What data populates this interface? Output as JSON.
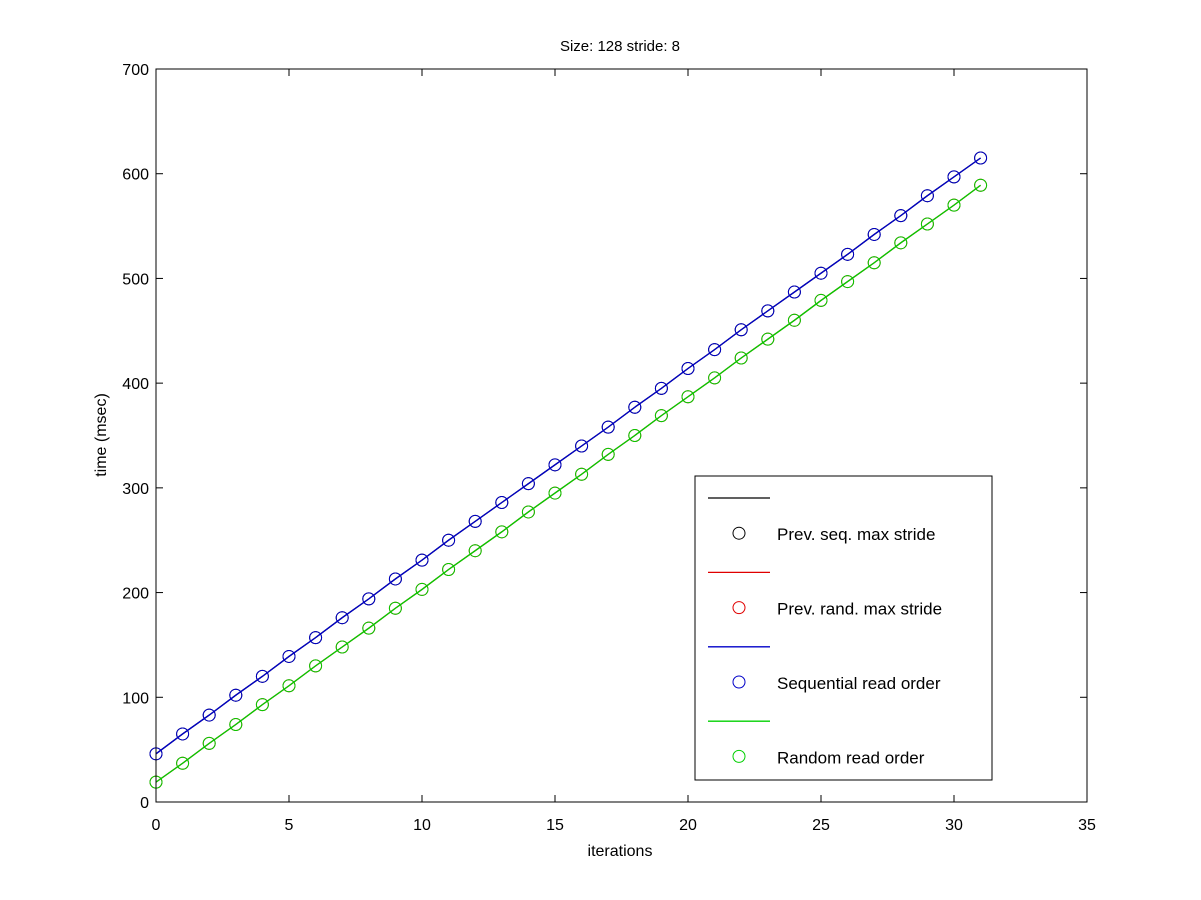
{
  "chart_data": {
    "type": "line",
    "title": "Size: 128 stride: 8",
    "xlabel": "iterations",
    "ylabel": "time (msec)",
    "xlim": [
      0,
      35
    ],
    "ylim": [
      0,
      700
    ],
    "xticks": [
      0,
      5,
      10,
      15,
      20,
      25,
      30,
      35
    ],
    "yticks": [
      0,
      100,
      200,
      300,
      400,
      500,
      600,
      700
    ],
    "grid": false,
    "legend_position": "bottom-right",
    "x": [
      0,
      1,
      2,
      3,
      4,
      5,
      6,
      7,
      8,
      9,
      10,
      11,
      12,
      13,
      14,
      15,
      16,
      17,
      18,
      19,
      20,
      21,
      22,
      23,
      24,
      25,
      26,
      27,
      28,
      29,
      30,
      31
    ],
    "series": [
      {
        "name": "Prev. seq. max stride",
        "line_color": "#000000",
        "marker_color": "#000000",
        "values": [
          46,
          65,
          83,
          102,
          120,
          139,
          157,
          176,
          194,
          213,
          231,
          250,
          268,
          286,
          304,
          322,
          340,
          358,
          377,
          395,
          414,
          432,
          451,
          469,
          487,
          505,
          523,
          542,
          560,
          579,
          597,
          615
        ]
      },
      {
        "name": "Prev. rand. max stride",
        "line_color": "#e00000",
        "marker_color": "#e00000",
        "values": [
          19,
          37,
          56,
          74,
          93,
          111,
          130,
          148,
          166,
          185,
          203,
          222,
          240,
          258,
          277,
          295,
          313,
          332,
          350,
          369,
          387,
          405,
          424,
          442,
          460,
          479,
          497,
          515,
          534,
          552,
          570,
          589
        ]
      },
      {
        "name": "Sequential read order",
        "line_color": "#0000c8",
        "marker_color": "#0000c8",
        "values": [
          46,
          65,
          83,
          102,
          120,
          139,
          157,
          176,
          194,
          213,
          231,
          250,
          268,
          286,
          304,
          322,
          340,
          358,
          377,
          395,
          414,
          432,
          451,
          469,
          487,
          505,
          523,
          542,
          560,
          579,
          597,
          615
        ]
      },
      {
        "name": "Random read order",
        "line_color": "#00d000",
        "marker_color": "#00d000",
        "values": [
          19,
          37,
          56,
          74,
          93,
          111,
          130,
          148,
          166,
          185,
          203,
          222,
          240,
          258,
          277,
          295,
          313,
          332,
          350,
          369,
          387,
          405,
          424,
          442,
          460,
          479,
          497,
          515,
          534,
          552,
          570,
          589
        ]
      }
    ],
    "legend_entries": [
      {
        "label": "",
        "kind": "line",
        "color": "#000000"
      },
      {
        "label": "Prev. seq. max stride",
        "kind": "marker",
        "color": "#000000"
      },
      {
        "label": "",
        "kind": "line",
        "color": "#e00000"
      },
      {
        "label": "Prev. rand. max stride",
        "kind": "marker",
        "color": "#e00000"
      },
      {
        "label": "",
        "kind": "line",
        "color": "#0000c8"
      },
      {
        "label": "Sequential read order",
        "kind": "marker",
        "color": "#0000c8"
      },
      {
        "label": "",
        "kind": "line",
        "color": "#00d000"
      },
      {
        "label": "Random read order",
        "kind": "marker",
        "color": "#00d000"
      }
    ]
  }
}
